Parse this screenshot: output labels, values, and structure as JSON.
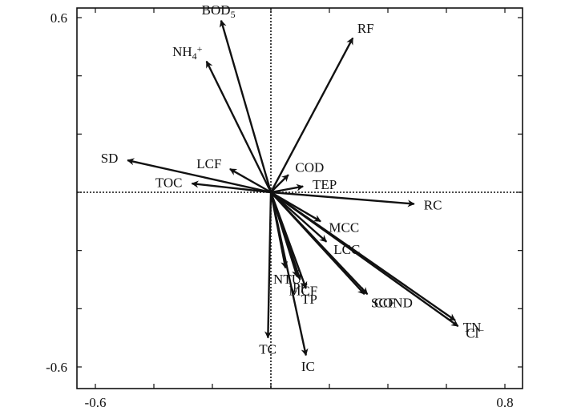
{
  "chart_data": {
    "type": "biplot",
    "title": "",
    "xlabel": "",
    "ylabel": "",
    "xlim": [
      -0.6,
      0.8
    ],
    "ylim": [
      -0.6,
      0.6
    ],
    "x_tick_labels": [
      "-0.6",
      "0.8"
    ],
    "y_tick_labels": [
      "0.6",
      "-0.6"
    ],
    "grid": false,
    "vectors": [
      {
        "label": "BOD",
        "sub": "5",
        "sup": "",
        "x": -0.17,
        "y": 0.59
      },
      {
        "label": "NH",
        "sub": "4",
        "sup": "+",
        "x": -0.22,
        "y": 0.45
      },
      {
        "label": "RF",
        "sub": "",
        "sup": "",
        "x": 0.28,
        "y": 0.53
      },
      {
        "label": "SD",
        "sub": "",
        "sup": "",
        "x": -0.49,
        "y": 0.11
      },
      {
        "label": "LCF",
        "sub": "",
        "sup": "",
        "x": -0.14,
        "y": 0.08
      },
      {
        "label": "TOC",
        "sub": "",
        "sup": "",
        "x": -0.27,
        "y": 0.03
      },
      {
        "label": "COD",
        "sub": "",
        "sup": "",
        "x": 0.06,
        "y": 0.06
      },
      {
        "label": "TEP",
        "sub": "",
        "sup": "",
        "x": 0.11,
        "y": 0.02
      },
      {
        "label": "RC",
        "sub": "",
        "sup": "",
        "x": 0.49,
        "y": -0.04
      },
      {
        "label": "MCC",
        "sub": "",
        "sup": "",
        "x": 0.17,
        "y": -0.1
      },
      {
        "label": "LCC",
        "sub": "",
        "sup": "",
        "x": 0.19,
        "y": -0.17
      },
      {
        "label": "SCF",
        "sub": "",
        "sup": "",
        "x": 0.32,
        "y": -0.35
      },
      {
        "label": "PF",
        "sub": "",
        "sup": "",
        "x": 0.09,
        "y": -0.29
      },
      {
        "label": "TP",
        "sub": "",
        "sup": "",
        "x": 0.12,
        "y": -0.33
      },
      {
        "label": "NTU",
        "sub": "",
        "sup": "",
        "x": 0.05,
        "y": -0.26
      },
      {
        "label": "MCF",
        "sub": "",
        "sup": "",
        "x": 0.1,
        "y": -0.3
      },
      {
        "label": "COND",
        "sub": "",
        "sup": "",
        "x": 0.33,
        "y": -0.35
      },
      {
        "label": "TN",
        "sub": "",
        "sup": "",
        "x": 0.63,
        "y": -0.44
      },
      {
        "label": "Cl",
        "sub": "",
        "sup": "−",
        "x": 0.64,
        "y": -0.46
      },
      {
        "label": "TC",
        "sub": "",
        "sup": "",
        "x": -0.01,
        "y": -0.5
      },
      {
        "label": "IC",
        "sub": "",
        "sup": "",
        "x": 0.12,
        "y": -0.56
      }
    ]
  }
}
